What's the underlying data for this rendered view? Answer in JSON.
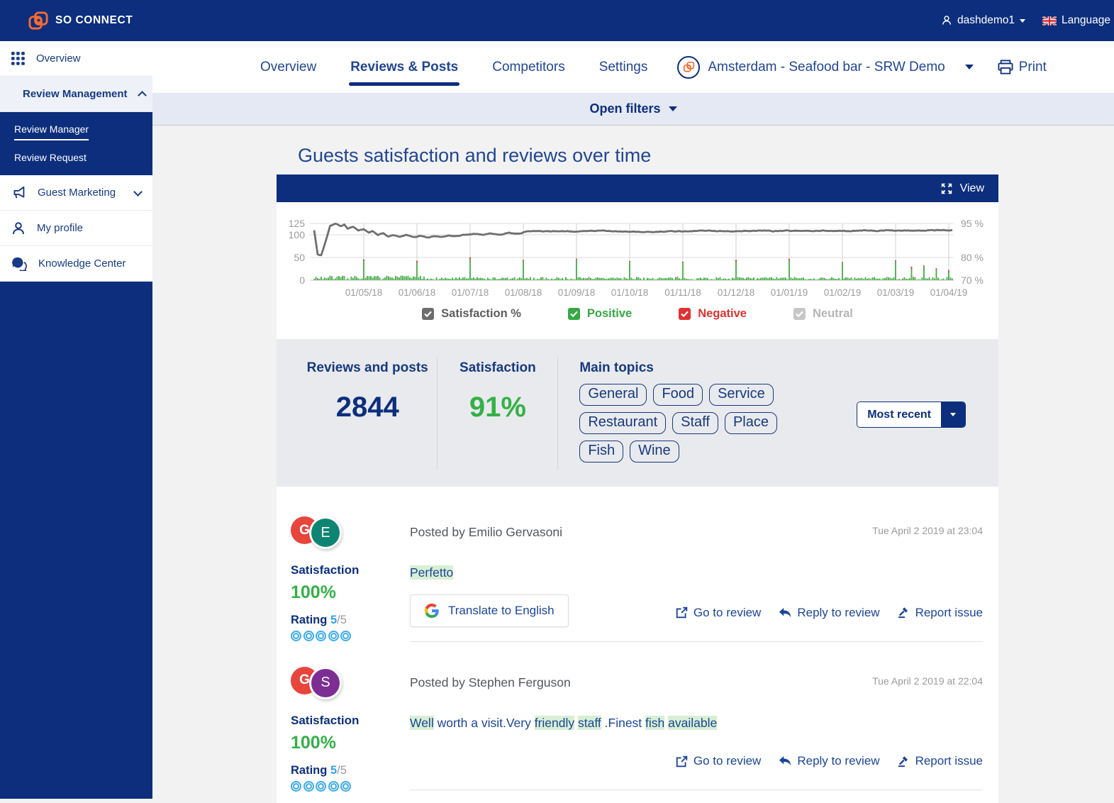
{
  "brand": {
    "name": "SO CONNECT",
    "accent_orange": "#f26b35",
    "navy": "#0c2e7d"
  },
  "topbar": {
    "user": "dashdemo1",
    "language_label": "Language"
  },
  "sidebar": {
    "items": [
      {
        "label": "Overview"
      },
      {
        "label": "Review Management"
      },
      {
        "label": "Guest Marketing"
      },
      {
        "label": "My profile"
      },
      {
        "label": "Knowledge Center"
      }
    ],
    "submenu": [
      {
        "label": "Review Manager",
        "active": true
      },
      {
        "label": "Review Request",
        "active": false
      }
    ]
  },
  "nav": {
    "tabs": [
      {
        "label": "Overview",
        "active": false
      },
      {
        "label": "Reviews & Posts",
        "active": true
      },
      {
        "label": "Competitors",
        "active": false
      },
      {
        "label": "Settings",
        "active": false
      }
    ],
    "location": "Amsterdam - Seafood bar - SRW Demo",
    "print_label": "Print"
  },
  "filters": {
    "label": "Open filters"
  },
  "page": {
    "heading": "Guests satisfaction and reviews over time",
    "view_label": "View"
  },
  "chart_data": {
    "type": "line+bar",
    "title": "Guests satisfaction and reviews over time",
    "x_tick_labels": [
      "01/05/18",
      "01/06/18",
      "01/07/18",
      "01/08/18",
      "01/09/18",
      "01/10/18",
      "01/11/18",
      "01/12/18",
      "01/01/19",
      "01/02/19",
      "01/03/19",
      "01/04/19"
    ],
    "y_left_ticks": [
      125,
      100,
      50,
      0
    ],
    "y_right_ticks": [
      "95 %",
      "80 %",
      "70 %"
    ],
    "y_left_max": 125,
    "legend": [
      {
        "label": "Satisfaction %",
        "color": "#6d6d6d",
        "checked": true
      },
      {
        "label": "Positive",
        "color": "#35a843",
        "checked": true
      },
      {
        "label": "Negative",
        "color": "#e03232",
        "checked": true
      },
      {
        "label": "Neutral",
        "color": "#c7c7c7",
        "checked": true
      }
    ],
    "line_series": {
      "name": "Satisfaction %",
      "color": "#6f6f6f",
      "anchors": [
        [
          0,
          110
        ],
        [
          2,
          57
        ],
        [
          4,
          55
        ],
        [
          6,
          80
        ],
        [
          9,
          120
        ],
        [
          12,
          125
        ],
        [
          15,
          120
        ],
        [
          17,
          123
        ],
        [
          19,
          114
        ],
        [
          22,
          118
        ],
        [
          25,
          110
        ],
        [
          28,
          112
        ],
        [
          31,
          104
        ],
        [
          33,
          108
        ],
        [
          36,
          99
        ],
        [
          39,
          103
        ],
        [
          42,
          96
        ],
        [
          45,
          99
        ],
        [
          48,
          96
        ],
        [
          52,
          99
        ],
        [
          56,
          95
        ],
        [
          60,
          98
        ],
        [
          64,
          94
        ],
        [
          68,
          97
        ],
        [
          72,
          95
        ],
        [
          76,
          99
        ],
        [
          80,
          97
        ],
        [
          85,
          100
        ],
        [
          90,
          102
        ],
        [
          95,
          100
        ],
        [
          100,
          103
        ],
        [
          105,
          101
        ],
        [
          110,
          104
        ],
        [
          115,
          102
        ],
        [
          120,
          107
        ],
        [
          126,
          108
        ],
        [
          132,
          107
        ],
        [
          140,
          108
        ],
        [
          150,
          107
        ],
        [
          160,
          109
        ],
        [
          170,
          108
        ],
        [
          180,
          107
        ],
        [
          190,
          106
        ],
        [
          200,
          107
        ],
        [
          210,
          108
        ],
        [
          220,
          109
        ],
        [
          230,
          108
        ],
        [
          240,
          108
        ],
        [
          250,
          109
        ],
        [
          260,
          108
        ],
        [
          270,
          109
        ],
        [
          280,
          108
        ],
        [
          290,
          109
        ],
        [
          300,
          108
        ],
        [
          310,
          110
        ],
        [
          320,
          109
        ],
        [
          330,
          110
        ],
        [
          340,
          109
        ],
        [
          350,
          110
        ],
        [
          360,
          110
        ]
      ]
    },
    "bar_series": {
      "positive_color": "#4caf50",
      "negative_color": "#e53a3a",
      "spikes": {
        "28": 42,
        "58": 38,
        "88": 46,
        "118": 42,
        "148": 45,
        "178": 40,
        "208": 38,
        "238": 40,
        "268": 43,
        "298": 38,
        "328": 41,
        "337": 25,
        "344": 30,
        "351": 22,
        "358": 18
      },
      "noise_seed": 7,
      "days": 361
    }
  },
  "stats": {
    "reviews_label": "Reviews and posts",
    "reviews_value": "2844",
    "satisfaction_label": "Satisfaction",
    "satisfaction_value": "91%",
    "topics_label": "Main topics",
    "topics": [
      "General",
      "Food",
      "Service",
      "Restaurant",
      "Staff",
      "Place",
      "Fish",
      "Wine"
    ],
    "sort_label": "Most recent"
  },
  "reviews": [
    {
      "initial": "E",
      "avatar_color": "#0e8573",
      "posted_by": "Posted by Emilio Gervasoni",
      "timestamp": "Tue April 2 2019 at 23:04",
      "satisfaction_label": "Satisfaction",
      "satisfaction": "100%",
      "rating_label": "Rating",
      "rating_score": "5",
      "rating_outof": "/5",
      "segments": [
        {
          "t": "Perfetto",
          "h": true
        }
      ],
      "translate_label": "Translate to English",
      "actions": [
        "Go to review",
        "Reply to review",
        "Report issue"
      ]
    },
    {
      "initial": "S",
      "avatar_color": "#7c2e94",
      "posted_by": "Posted by Stephen Ferguson",
      "timestamp": "Tue April 2 2019 at 22:04",
      "satisfaction_label": "Satisfaction",
      "satisfaction": "100%",
      "rating_label": "Rating",
      "rating_score": "5",
      "rating_outof": "/5",
      "segments": [
        {
          "t": "Well",
          "h": true
        },
        {
          "t": " worth a visit.Very ",
          "h": false
        },
        {
          "t": "friendly",
          "h": true
        },
        {
          "t": " ",
          "h": false
        },
        {
          "t": "staff",
          "h": true
        },
        {
          "t": " .Finest ",
          "h": false
        },
        {
          "t": "fish",
          "h": true
        },
        {
          "t": " ",
          "h": false
        },
        {
          "t": "available",
          "h": true
        }
      ],
      "translate_label": null,
      "actions": [
        "Go to review",
        "Reply to review",
        "Report issue"
      ]
    }
  ]
}
